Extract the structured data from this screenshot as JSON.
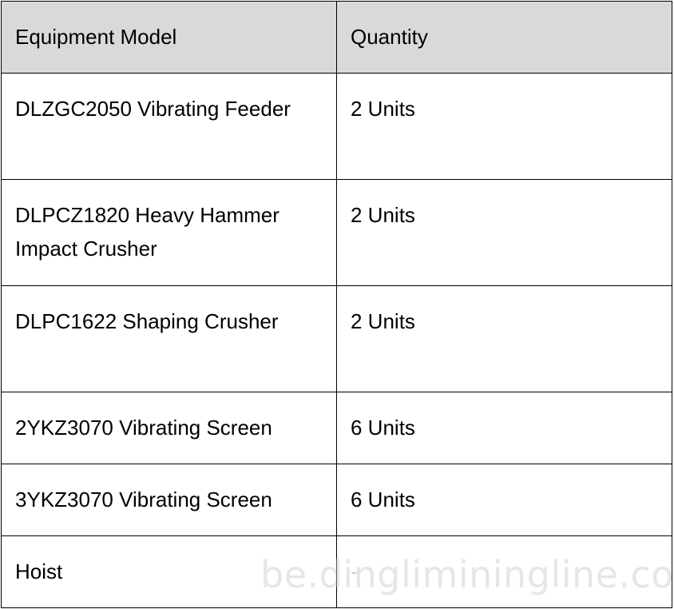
{
  "table": {
    "headers": [
      "Equipment Model",
      "Quantity"
    ],
    "rows": [
      {
        "model": "DLZGC2050 Vibrating Feeder",
        "quantity": "2 Units"
      },
      {
        "model": "DLPCZ1820 Heavy Hammer Impact Crusher",
        "quantity": "2 Units"
      },
      {
        "model": "DLPC1622 Shaping Crusher",
        "quantity": "2 Units"
      },
      {
        "model": "2YKZ3070 Vibrating Screen",
        "quantity": "6 Units"
      },
      {
        "model": "3YKZ3070 Vibrating Screen",
        "quantity": "6 Units"
      },
      {
        "model": "Hoist",
        "quantity": "-"
      }
    ]
  },
  "watermark": "be.dingliminingline.com"
}
